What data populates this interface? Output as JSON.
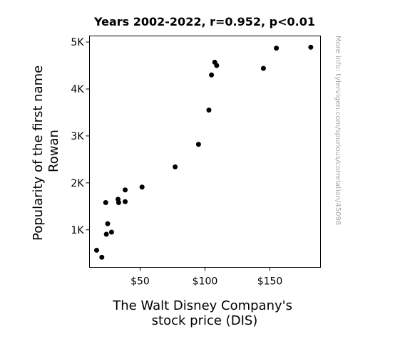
{
  "chart_data": {
    "type": "scatter",
    "title": "Years 2002-2022, r=0.952, p<0.01",
    "xlabel": [
      "The Walt Disney Company's",
      "stock price (DIS)"
    ],
    "ylabel": [
      "Popularity of the first name",
      "Rowan"
    ],
    "watermark": "More info: tylervigen.com/spurious/correlation/45098",
    "xlim": [
      11,
      189
    ],
    "ylim": [
      200,
      5130
    ],
    "xticks": [
      {
        "value": 50,
        "label": "$50"
      },
      {
        "value": 100,
        "label": "$100"
      },
      {
        "value": 150,
        "label": "$150"
      }
    ],
    "yticks": [
      {
        "value": 1000,
        "label": "1K"
      },
      {
        "value": 2000,
        "label": "2K"
      },
      {
        "value": 3000,
        "label": "3K"
      },
      {
        "value": 4000,
        "label": "4K"
      },
      {
        "value": 5000,
        "label": "5K"
      }
    ],
    "grid": false,
    "marker_color": "#000000",
    "points": [
      {
        "x": 16.5,
        "y": 565
      },
      {
        "x": 20.5,
        "y": 415
      },
      {
        "x": 23.5,
        "y": 1580
      },
      {
        "x": 24,
        "y": 905
      },
      {
        "x": 25,
        "y": 1130
      },
      {
        "x": 28,
        "y": 950
      },
      {
        "x": 33,
        "y": 1650
      },
      {
        "x": 33.5,
        "y": 1580
      },
      {
        "x": 38.5,
        "y": 1850
      },
      {
        "x": 38.5,
        "y": 1600
      },
      {
        "x": 51.5,
        "y": 1910
      },
      {
        "x": 77,
        "y": 2340
      },
      {
        "x": 95,
        "y": 2820
      },
      {
        "x": 103,
        "y": 3550
      },
      {
        "x": 105,
        "y": 4300
      },
      {
        "x": 107.5,
        "y": 4570
      },
      {
        "x": 109,
        "y": 4500
      },
      {
        "x": 145,
        "y": 4440
      },
      {
        "x": 155,
        "y": 4870
      },
      {
        "x": 181.5,
        "y": 4890
      }
    ]
  }
}
